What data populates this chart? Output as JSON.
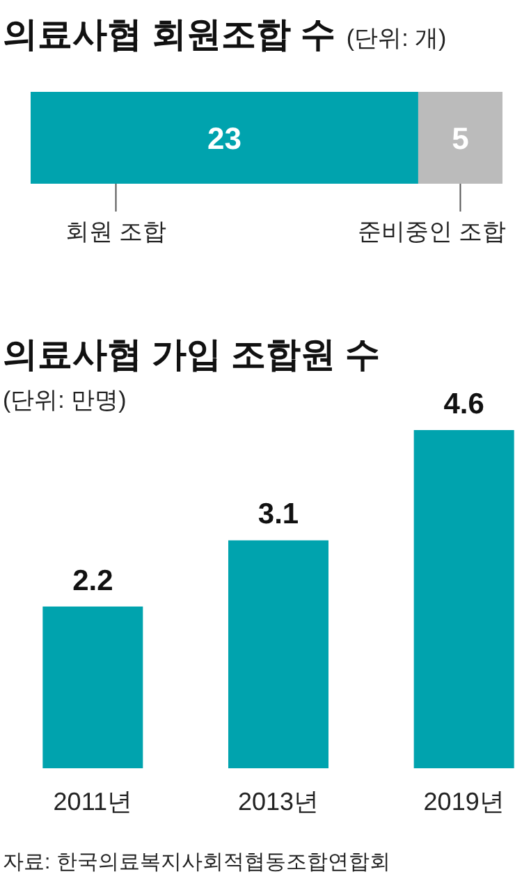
{
  "chart_data": [
    {
      "type": "bar",
      "title": "의료사협 회원조합 수",
      "subtitle": "(단위: 개)",
      "orientation": "horizontal",
      "stacked": true,
      "data_labels": true,
      "categories": [
        null
      ],
      "series": [
        {
          "name": "회원 조합",
          "color": "#00a3ae",
          "values": [
            23
          ]
        },
        {
          "name": "준비중인 조합",
          "color": "#bbbbbb",
          "values": [
            5
          ]
        }
      ]
    },
    {
      "type": "bar",
      "title": "의료사협 가입 조합원 수",
      "subtitle": "(단위: 만명)",
      "data_labels": true,
      "categories": [
        "2011년",
        "2013년",
        "2019년"
      ],
      "values": [
        2.2,
        3.1,
        4.6
      ],
      "color": "#00a3ae",
      "annotations": [
        "자료: 한국의료복지사회적협동조합연합회"
      ]
    }
  ]
}
